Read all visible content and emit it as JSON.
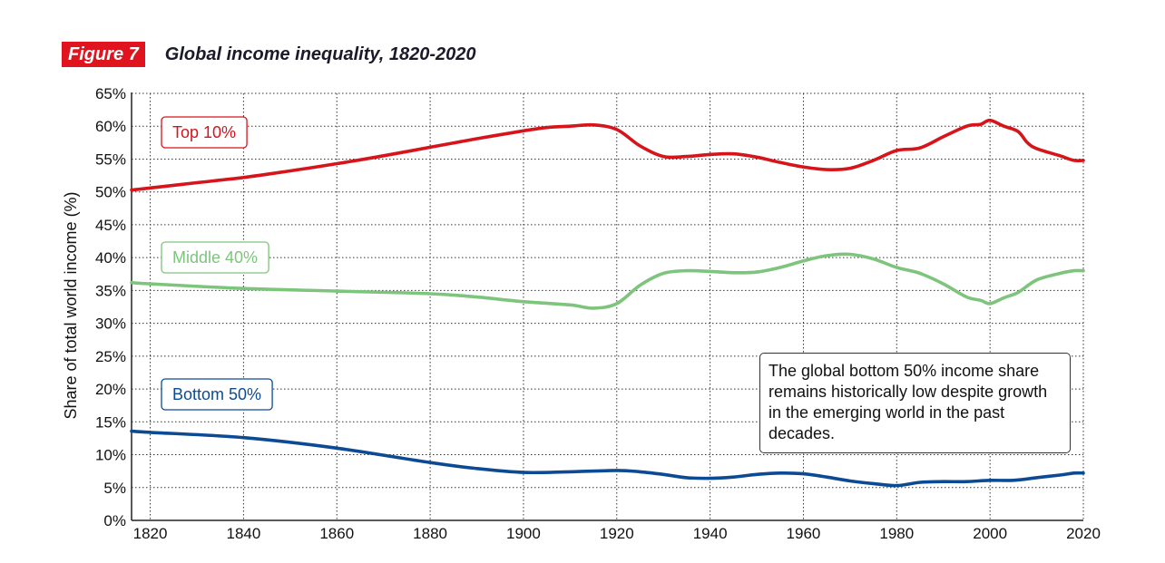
{
  "figure": {
    "badge": "Figure 7",
    "title": "Global income inequality, 1820-2020"
  },
  "note": "The global bottom 50% income share remains historically low despite growth in the emerging world in the past decades.",
  "chart_data": {
    "type": "line",
    "title": "Global income inequality, 1820-2020",
    "xlabel": "",
    "ylabel": "Share of total world income (%)",
    "xlim": [
      1816,
      2020
    ],
    "ylim": [
      0,
      65
    ],
    "grid": true,
    "x_ticks": [
      1820,
      1840,
      1860,
      1880,
      1900,
      1920,
      1940,
      1960,
      1980,
      2000,
      2020
    ],
    "x_tick_labels": [
      "1820",
      "1840",
      "1860",
      "1880",
      "1900",
      "1920",
      "1940",
      "1960",
      "1980",
      "2000",
      "2020"
    ],
    "y_ticks": [
      0,
      5,
      10,
      15,
      20,
      25,
      30,
      35,
      40,
      45,
      50,
      55,
      60,
      65
    ],
    "y_tick_labels": [
      "0%",
      "5%",
      "10%",
      "15%",
      "20%",
      "25%",
      "30%",
      "35%",
      "40%",
      "45%",
      "50%",
      "55%",
      "60%",
      "65%"
    ],
    "series": [
      {
        "name": "Top 10%",
        "color": "#d7141a",
        "x": [
          1816,
          1820,
          1830,
          1840,
          1850,
          1860,
          1870,
          1880,
          1890,
          1900,
          1905,
          1910,
          1915,
          1920,
          1925,
          1930,
          1935,
          1940,
          1945,
          1950,
          1955,
          1960,
          1965,
          1970,
          1975,
          1980,
          1985,
          1990,
          1995,
          1998,
          2000,
          2003,
          2006,
          2008,
          2010,
          2015,
          2018,
          2020
        ],
        "values": [
          50.3,
          50.6,
          51.4,
          52.2,
          53.2,
          54.3,
          55.5,
          56.8,
          58.1,
          59.3,
          59.8,
          60.0,
          60.2,
          59.5,
          57.0,
          55.4,
          55.4,
          55.7,
          55.8,
          55.3,
          54.5,
          53.8,
          53.4,
          53.6,
          54.8,
          56.3,
          56.7,
          58.4,
          60.0,
          60.3,
          60.9,
          60.0,
          59.2,
          57.5,
          56.6,
          55.5,
          54.8,
          54.8
        ]
      },
      {
        "name": "Middle 40%",
        "color": "#7dc47d",
        "x": [
          1816,
          1820,
          1840,
          1860,
          1880,
          1890,
          1900,
          1910,
          1915,
          1920,
          1925,
          1930,
          1935,
          1940,
          1945,
          1950,
          1955,
          1960,
          1965,
          1970,
          1975,
          1980,
          1985,
          1990,
          1995,
          1998,
          2000,
          2003,
          2006,
          2010,
          2015,
          2018,
          2020
        ],
        "values": [
          36.2,
          36.0,
          35.3,
          34.9,
          34.5,
          34.0,
          33.3,
          32.8,
          32.3,
          33.0,
          35.8,
          37.6,
          38.0,
          37.9,
          37.7,
          37.8,
          38.5,
          39.5,
          40.3,
          40.5,
          39.8,
          38.5,
          37.6,
          36.0,
          34.0,
          33.5,
          33.0,
          33.9,
          34.7,
          36.6,
          37.6,
          38.0,
          38.0
        ]
      },
      {
        "name": "Bottom 50%",
        "color": "#0c4b93",
        "x": [
          1816,
          1820,
          1840,
          1860,
          1880,
          1890,
          1900,
          1910,
          1920,
          1925,
          1930,
          1935,
          1940,
          1945,
          1950,
          1955,
          1960,
          1965,
          1970,
          1975,
          1980,
          1985,
          1990,
          1995,
          2000,
          2005,
          2010,
          2015,
          2018,
          2020
        ],
        "values": [
          13.6,
          13.4,
          12.6,
          11.0,
          8.8,
          7.9,
          7.3,
          7.4,
          7.6,
          7.4,
          7.0,
          6.5,
          6.4,
          6.6,
          7.0,
          7.2,
          7.1,
          6.6,
          6.0,
          5.6,
          5.3,
          5.8,
          5.9,
          5.9,
          6.1,
          6.1,
          6.5,
          6.9,
          7.2,
          7.2
        ]
      }
    ],
    "legend_labels": [
      {
        "text": "Top 10%",
        "series": "Top 10%"
      },
      {
        "text": "Middle 40%",
        "series": "Middle 40%"
      },
      {
        "text": "Bottom 50%",
        "series": "Bottom 50%"
      }
    ],
    "annotation": "The global bottom 50% income share remains historically low despite growth in the emerging world in the past decades."
  }
}
